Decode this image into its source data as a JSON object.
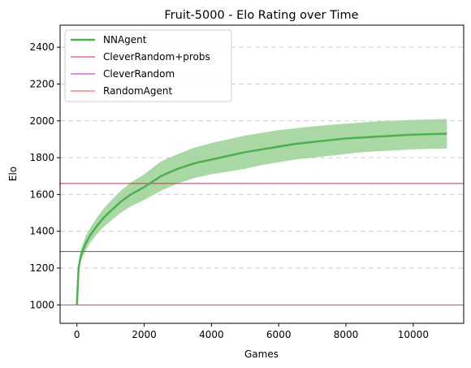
{
  "chart_data": {
    "type": "line",
    "title": "Fruit-5000 - Elo Rating over Time",
    "xlabel": "Games",
    "ylabel": "Elo",
    "xlim": [
      -500,
      11500
    ],
    "ylim": [
      900,
      2520
    ],
    "xticks": [
      0,
      2000,
      4000,
      6000,
      8000,
      10000
    ],
    "yticks": [
      1000,
      1200,
      1400,
      1600,
      1800,
      2000,
      2200,
      2400
    ],
    "grid": "horizontal-dashed",
    "legend_location": "top-left",
    "series": [
      {
        "name": "NNAgent",
        "color": "#4caf50",
        "band_color": "#a5d6a0",
        "x": [
          0,
          50,
          120,
          250,
          400,
          600,
          800,
          1000,
          1300,
          1600,
          2000,
          2500,
          3000,
          3500,
          4000,
          4500,
          5000,
          5500,
          6000,
          6500,
          7000,
          7500,
          8000,
          8500,
          9000,
          9500,
          10000,
          10500,
          11000
        ],
        "y": [
          1000,
          1200,
          1270,
          1330,
          1380,
          1430,
          1475,
          1510,
          1560,
          1600,
          1640,
          1700,
          1740,
          1770,
          1790,
          1810,
          1830,
          1845,
          1860,
          1875,
          1885,
          1895,
          1905,
          1910,
          1915,
          1920,
          1925,
          1928,
          1930
        ],
        "upper": [
          1000,
          1220,
          1300,
          1370,
          1420,
          1475,
          1525,
          1565,
          1620,
          1665,
          1710,
          1780,
          1820,
          1855,
          1880,
          1900,
          1920,
          1935,
          1950,
          1960,
          1970,
          1978,
          1985,
          1992,
          1998,
          2002,
          2006,
          2008,
          2010
        ],
        "lower": [
          1000,
          1180,
          1240,
          1290,
          1340,
          1385,
          1425,
          1455,
          1500,
          1535,
          1570,
          1620,
          1660,
          1690,
          1710,
          1725,
          1740,
          1760,
          1775,
          1790,
          1800,
          1810,
          1820,
          1830,
          1835,
          1840,
          1845,
          1848,
          1850
        ]
      },
      {
        "name": "CleverRandom+probs",
        "color": "#e91e63",
        "y_const": 1660
      },
      {
        "name": "CleverRandom",
        "color": "#c218c2",
        "y_const": 1290
      },
      {
        "name": "RandomAgent",
        "color": "#f44336",
        "y_const": 1000
      }
    ]
  }
}
